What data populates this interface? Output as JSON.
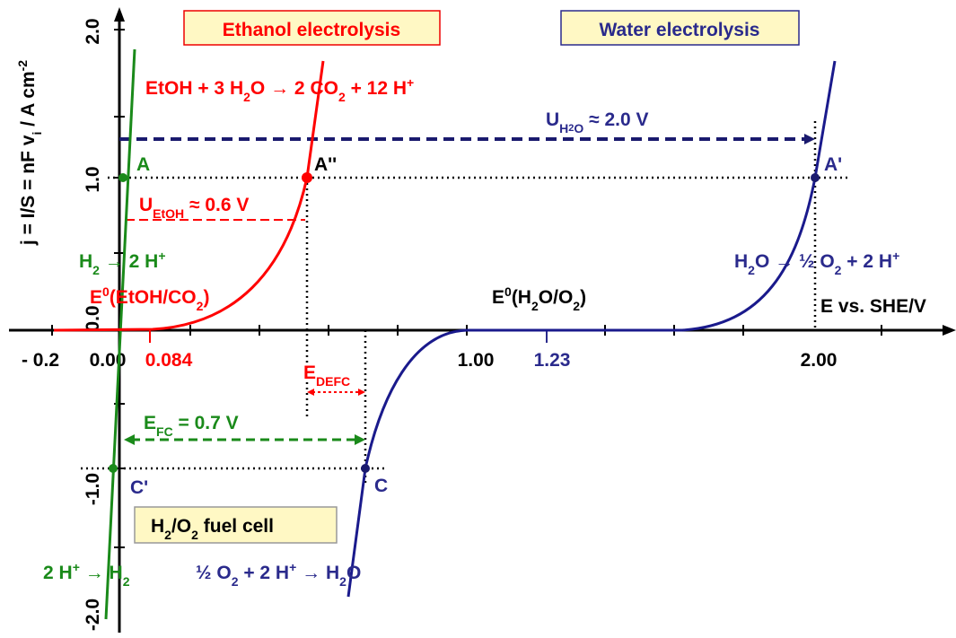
{
  "boxes": {
    "ethanol": "Ethanol electrolysis",
    "water": "Water electrolysis",
    "fuel_cell": [
      "H",
      "2",
      "/O",
      "2",
      " fuel cell"
    ]
  },
  "y_axis_label": [
    "j = I/S = nF v",
    "i",
    " / A cm",
    "-2"
  ],
  "x_axis_label": "E vs. SHE/V",
  "x_ticks": [
    "- 0.2",
    "0.00",
    "0.084",
    "1.00",
    "1.23",
    "2.00"
  ],
  "y_ticks": [
    "2.0",
    "1.0",
    "0.0",
    "-1.0",
    "-2.0"
  ],
  "reactions": {
    "ethanol": [
      "EtOH + 3 H",
      "2",
      "O → 2 CO",
      "2",
      " + 12 H",
      "+"
    ],
    "water_ox": [
      "H",
      "2",
      "O → ½ O",
      "2",
      " + 2 H",
      "+"
    ],
    "h2_ox": [
      "H",
      "2",
      " → 2 H",
      "+"
    ],
    "o2_red": [
      "½ O",
      "2",
      " + 2 H",
      "+",
      " → H",
      "2",
      "O"
    ],
    "h_red": [
      "2 H",
      "+",
      " → H",
      "2"
    ]
  },
  "potentials": {
    "e0_etoh": [
      "E",
      "0",
      "(EtOH/CO",
      "2",
      ")"
    ],
    "e0_water": [
      "E",
      "0",
      "(H",
      "2",
      "O/O",
      "2",
      ")"
    ]
  },
  "voltages": {
    "u_h2o": [
      "U",
      "H",
      "2",
      "O",
      " ≈ 2.0 V"
    ],
    "u_etoh": [
      "U",
      "EtOH",
      " ≈ 0.6 V"
    ],
    "e_fc": [
      "E",
      "FC",
      " = 0.7 V"
    ],
    "e_defc": [
      "E",
      "DEFC"
    ]
  },
  "points": {
    "A": "A",
    "A2": "A''",
    "A3": "A'",
    "C": "C",
    "C2": "C'"
  }
}
